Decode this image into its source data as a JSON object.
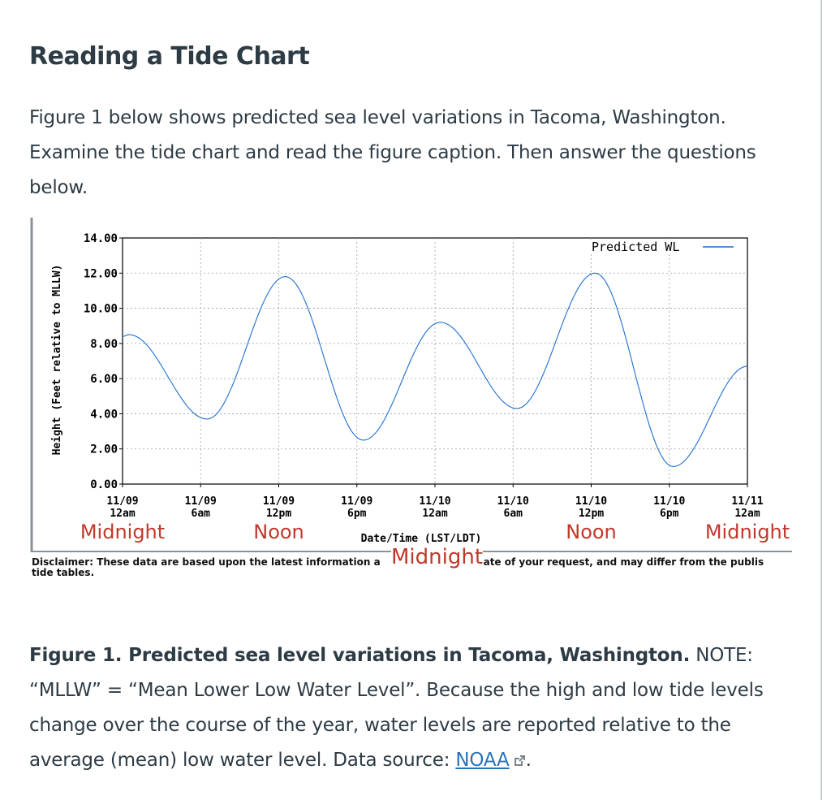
{
  "page": {
    "title": "Reading a Tide Chart",
    "intro": "Figure 1 below shows predicted sea level variations in Tacoma, Washington. Examine the tide chart and read the figure caption. Then answer the questions below."
  },
  "figure": {
    "disclaimer": "Disclaimer: These data are based upon the latest information a",
    "disclaimer_tail": "e date of your request, and may differ from the publis",
    "disclaimer_line2": "tide tables.",
    "overlay_midnight_center": "Midnight",
    "caption_bold": "Figure 1. Predicted sea level variations in Tacoma, Washington.",
    "caption_text": " NOTE: “MLLW” = “Mean Lower Low Water Level”.  Because the high and low tide levels change over the course of the year, water levels are reported relative to the average (mean) low water level.  Data source: ",
    "caption_link": "NOAA",
    "caption_end": ".",
    "link_icon": "external-link-icon"
  },
  "chart_data": {
    "type": "line",
    "title": "",
    "xlabel": "Date/Time (LST/LDT)",
    "ylabel": "Height (Feet relative to MLLW)",
    "ylim": [
      0,
      14
    ],
    "yticks": [
      "0.00",
      "2.00",
      "4.00",
      "6.00",
      "8.00",
      "10.00",
      "12.00",
      "14.00"
    ],
    "xlim_hours": [
      0,
      48
    ],
    "xticks": [
      {
        "date": "11/09",
        "time": "12am",
        "hour": 0
      },
      {
        "date": "11/09",
        "time": "6am",
        "hour": 6
      },
      {
        "date": "11/09",
        "time": "12pm",
        "hour": 12
      },
      {
        "date": "11/09",
        "time": "6pm",
        "hour": 18
      },
      {
        "date": "11/10",
        "time": "12am",
        "hour": 24
      },
      {
        "date": "11/10",
        "time": "6am",
        "hour": 30
      },
      {
        "date": "11/10",
        "time": "12pm",
        "hour": 36
      },
      {
        "date": "11/10",
        "time": "6pm",
        "hour": 42
      },
      {
        "date": "11/11",
        "time": "12am",
        "hour": 48
      }
    ],
    "annotations": [
      {
        "text": "Midnight",
        "hour": 0,
        "color": "#c0392b"
      },
      {
        "text": "Noon",
        "hour": 12,
        "color": "#c0392b"
      },
      {
        "text": "Noon",
        "hour": 36,
        "color": "#c0392b"
      },
      {
        "text": "Midnight",
        "hour": 48,
        "color": "#c0392b"
      }
    ],
    "legend": "top-right",
    "grid": true,
    "line_color": "#1f6fd1",
    "annotation_color": "#c0392b",
    "series": [
      {
        "name": "Predicted WL",
        "x": [
          0,
          0.5,
          6.5,
          12.5,
          18.5,
          24.4,
          30.3,
          36.3,
          42.3,
          48
        ],
        "y": [
          8.4,
          8.5,
          3.7,
          11.8,
          2.5,
          9.2,
          4.3,
          12.0,
          1.0,
          6.7
        ]
      }
    ]
  }
}
